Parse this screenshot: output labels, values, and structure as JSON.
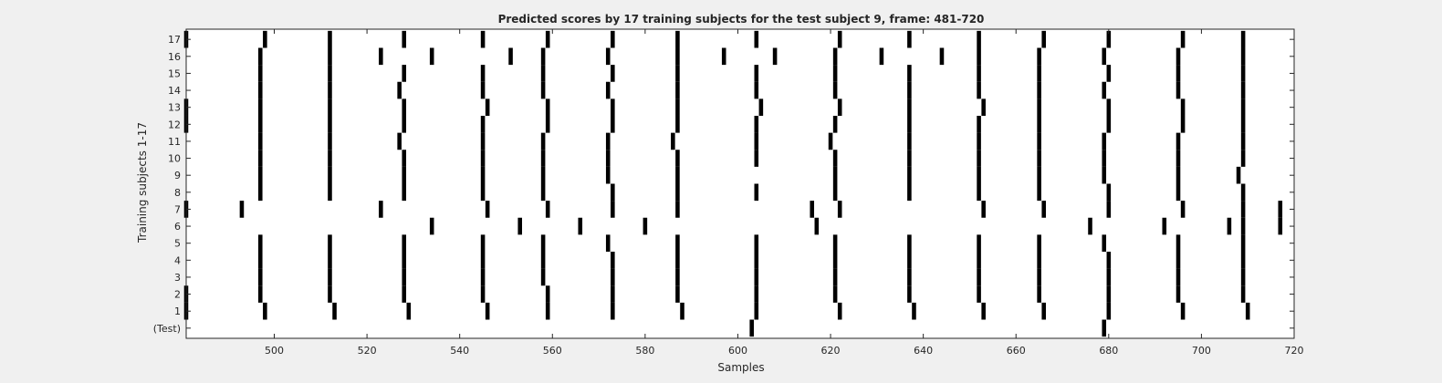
{
  "chart_data": {
    "type": "raster",
    "title": "Predicted scores by 17 training subjects for the test subject 9, frame: 481-720",
    "xlabel": "Samples",
    "ylabel": "Training subjects 1-17",
    "xlim": [
      481,
      720
    ],
    "xticks": [
      500,
      520,
      540,
      560,
      580,
      600,
      620,
      640,
      660,
      680,
      700,
      720
    ],
    "yticks": [
      "(Test)",
      "1",
      "2",
      "3",
      "4",
      "5",
      "6",
      "7",
      "8",
      "9",
      "10",
      "11",
      "12",
      "13",
      "14",
      "15",
      "16",
      "17"
    ],
    "colors": {
      "background": "#f0f0f0",
      "axes": "#ffffff",
      "mark": "#000000"
    },
    "rows": [
      {
        "label": "(Test)",
        "events": [
          603,
          679
        ]
      },
      {
        "label": "1",
        "events": [
          481,
          498,
          513,
          529,
          546,
          559,
          573,
          588,
          604,
          622,
          638,
          653,
          666,
          680,
          696,
          710
        ]
      },
      {
        "label": "2",
        "events": [
          481,
          497,
          512,
          528,
          545,
          559,
          573,
          587,
          604,
          621,
          637,
          652,
          665,
          680,
          695,
          709
        ]
      },
      {
        "label": "3",
        "events": [
          497,
          512,
          528,
          545,
          558,
          573,
          587,
          604,
          621,
          637,
          652,
          665,
          680,
          695,
          709
        ]
      },
      {
        "label": "4",
        "events": [
          497,
          512,
          528,
          545,
          558,
          573,
          587,
          604,
          621,
          637,
          652,
          665,
          680,
          695,
          709
        ]
      },
      {
        "label": "5",
        "events": [
          497,
          512,
          528,
          545,
          558,
          572,
          587,
          604,
          621,
          637,
          652,
          665,
          679,
          695,
          709
        ]
      },
      {
        "label": "6",
        "events": [
          534,
          553,
          566,
          580,
          617,
          676,
          692,
          706,
          709,
          717
        ]
      },
      {
        "label": "7",
        "events": [
          481,
          493,
          523,
          546,
          559,
          573,
          587,
          616,
          622,
          653,
          666,
          680,
          696,
          709,
          717
        ]
      },
      {
        "label": "8",
        "events": [
          497,
          512,
          528,
          545,
          558,
          573,
          587,
          604,
          621,
          637,
          652,
          665,
          680,
          695,
          709
        ]
      },
      {
        "label": "9",
        "events": [
          497,
          512,
          528,
          545,
          558,
          572,
          587,
          621,
          637,
          652,
          665,
          679,
          695,
          708
        ]
      },
      {
        "label": "10",
        "events": [
          497,
          512,
          528,
          545,
          558,
          572,
          587,
          604,
          621,
          637,
          652,
          665,
          679,
          695,
          709
        ]
      },
      {
        "label": "11",
        "events": [
          497,
          512,
          527,
          545,
          558,
          572,
          586,
          604,
          620,
          637,
          652,
          665,
          679,
          695,
          709
        ]
      },
      {
        "label": "12",
        "events": [
          481,
          497,
          512,
          528,
          545,
          559,
          573,
          587,
          604,
          621,
          637,
          652,
          665,
          680,
          696,
          709
        ]
      },
      {
        "label": "13",
        "events": [
          481,
          497,
          512,
          528,
          546,
          559,
          573,
          587,
          605,
          622,
          637,
          653,
          665,
          680,
          696,
          709
        ]
      },
      {
        "label": "14",
        "events": [
          497,
          512,
          527,
          545,
          558,
          572,
          587,
          604,
          621,
          637,
          652,
          665,
          679,
          695,
          709
        ]
      },
      {
        "label": "15",
        "events": [
          497,
          512,
          528,
          545,
          558,
          573,
          587,
          604,
          621,
          637,
          652,
          665,
          680,
          695,
          709
        ]
      },
      {
        "label": "16",
        "events": [
          497,
          512,
          523,
          534,
          551,
          558,
          572,
          587,
          597,
          608,
          621,
          631,
          644,
          652,
          665,
          679,
          695,
          709
        ]
      },
      {
        "label": "17",
        "events": [
          481,
          498,
          512,
          528,
          545,
          559,
          573,
          587,
          604,
          622,
          637,
          652,
          666,
          680,
          696,
          709
        ]
      }
    ]
  }
}
